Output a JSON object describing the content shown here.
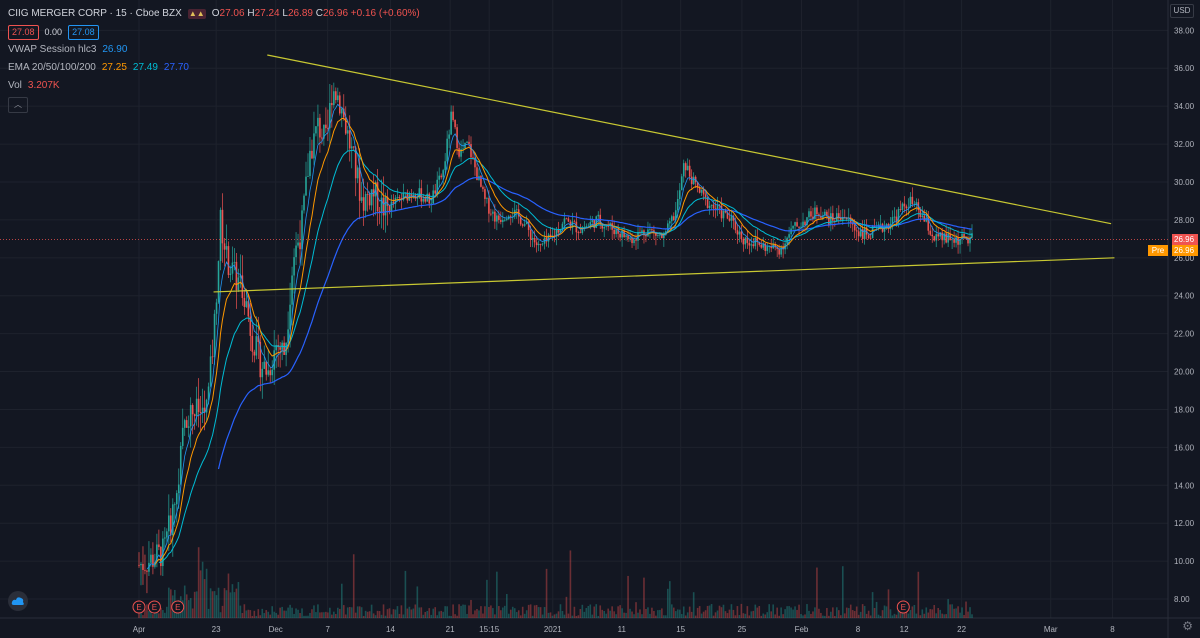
{
  "header": {
    "symbol": "CIIG MERGER CORP · 15 · Cboe BZX",
    "ohlc": [
      {
        "k": "O",
        "v": "27.06"
      },
      {
        "k": "H",
        "v": "27.24"
      },
      {
        "k": "L",
        "v": "26.89"
      },
      {
        "k": "C",
        "v": "26.96 +0.16 (+0.60%)"
      }
    ],
    "bid": "27.08",
    "spread": "0.00",
    "ask": "27.08",
    "vwap_label": "VWAP Session hlc3",
    "vwap_value": "26.90",
    "ema_label": "EMA 20/50/100/200",
    "ema_values": [
      "27.25",
      "27.49",
      "27.70"
    ],
    "vol_label": "Vol",
    "vol_value": "3.207K"
  },
  "currency": "USD",
  "last_price": "26.96",
  "pre_label": "Pre",
  "pre_price": "26.96",
  "colors": {
    "background": "#131722",
    "up": "#26a69a",
    "down": "#ef5350",
    "trendline": "#c8c832",
    "ema20": "#ff9800",
    "ema50": "#00bcd4",
    "ema200": "#2962ff",
    "vwap": "#2196f3"
  },
  "chart_data": {
    "type": "candlestick",
    "y_ticks": [
      8,
      10,
      12,
      14,
      16,
      18,
      20,
      22,
      24,
      26,
      28,
      30,
      32,
      34,
      36,
      38
    ],
    "ylim": [
      7,
      39.6
    ],
    "x_labels": [
      {
        "label": "Apr",
        "x": 0
      },
      {
        "label": "23",
        "x": 0.0926
      },
      {
        "label": "Dec",
        "x": 0.1641
      },
      {
        "label": "7",
        "x": 0.2265
      },
      {
        "label": "14",
        "x": 0.3019
      },
      {
        "label": "21",
        "x": 0.3735
      },
      {
        "label": "15:15",
        "x": 0.4204
      },
      {
        "label": "2021",
        "x": 0.4967
      },
      {
        "label": "11",
        "x": 0.5796
      },
      {
        "label": "15",
        "x": 0.6503
      },
      {
        "label": "25",
        "x": 0.7238
      },
      {
        "label": "Feb",
        "x": 0.7953
      },
      {
        "label": "8",
        "x": 0.8631
      },
      {
        "label": "12",
        "x": 0.9185
      },
      {
        "label": "22",
        "x": 0.9875
      }
    ],
    "x_labels_future": [
      {
        "label": "Mar",
        "x": 1.0945
      },
      {
        "label": "8",
        "x": 1.1686
      }
    ],
    "price_path": [
      [
        0.0,
        9.8
      ],
      [
        0.012,
        10.0
      ],
      [
        0.03,
        10.5
      ],
      [
        0.045,
        13.5
      ],
      [
        0.055,
        17.5
      ],
      [
        0.065,
        18.0
      ],
      [
        0.075,
        17.8
      ],
      [
        0.082,
        18.2
      ],
      [
        0.09,
        22.0
      ],
      [
        0.098,
        28.0
      ],
      [
        0.105,
        26.0
      ],
      [
        0.115,
        25.0
      ],
      [
        0.125,
        24.5
      ],
      [
        0.135,
        22.0
      ],
      [
        0.145,
        20.5
      ],
      [
        0.155,
        20.0
      ],
      [
        0.165,
        21.5
      ],
      [
        0.175,
        21.0
      ],
      [
        0.185,
        26.0
      ],
      [
        0.195,
        27.5
      ],
      [
        0.205,
        31.5
      ],
      [
        0.215,
        33.0
      ],
      [
        0.225,
        32.0
      ],
      [
        0.232,
        35.0
      ],
      [
        0.24,
        34.5
      ],
      [
        0.248,
        33.0
      ],
      [
        0.258,
        31.0
      ],
      [
        0.268,
        29.0
      ],
      [
        0.28,
        29.5
      ],
      [
        0.295,
        28.5
      ],
      [
        0.31,
        29.0
      ],
      [
        0.33,
        29.5
      ],
      [
        0.35,
        29.0
      ],
      [
        0.365,
        30.5
      ],
      [
        0.375,
        33.5
      ],
      [
        0.385,
        31.5
      ],
      [
        0.395,
        32.0
      ],
      [
        0.405,
        30.5
      ],
      [
        0.415,
        29.0
      ],
      [
        0.43,
        28.0
      ],
      [
        0.445,
        28.5
      ],
      [
        0.46,
        28.0
      ],
      [
        0.48,
        26.5
      ],
      [
        0.495,
        27.0
      ],
      [
        0.51,
        28.0
      ],
      [
        0.53,
        27.5
      ],
      [
        0.55,
        28.0
      ],
      [
        0.57,
        27.5
      ],
      [
        0.59,
        27.0
      ],
      [
        0.61,
        27.5
      ],
      [
        0.63,
        27.0
      ],
      [
        0.645,
        28.5
      ],
      [
        0.655,
        31.0
      ],
      [
        0.665,
        30.0
      ],
      [
        0.68,
        29.0
      ],
      [
        0.695,
        28.5
      ],
      [
        0.71,
        28.0
      ],
      [
        0.725,
        27.0
      ],
      [
        0.74,
        26.8
      ],
      [
        0.755,
        26.5
      ],
      [
        0.77,
        26.5
      ],
      [
        0.785,
        27.5
      ],
      [
        0.8,
        28.0
      ],
      [
        0.815,
        28.5
      ],
      [
        0.83,
        28.0
      ],
      [
        0.845,
        28.3
      ],
      [
        0.86,
        27.5
      ],
      [
        0.875,
        27.2
      ],
      [
        0.89,
        27.5
      ],
      [
        0.905,
        28.0
      ],
      [
        0.915,
        28.5
      ],
      [
        0.925,
        29.0
      ],
      [
        0.935,
        28.5
      ],
      [
        0.945,
        27.8
      ],
      [
        0.955,
        27.0
      ],
      [
        0.965,
        27.0
      ],
      [
        0.975,
        26.96
      ]
    ],
    "trendlines": [
      {
        "name": "resistance",
        "from": [
          0.154,
          36.7
        ],
        "to": [
          1.167,
          27.8
        ]
      },
      {
        "name": "support",
        "from": [
          0.0895,
          24.2
        ],
        "to": [
          1.171,
          26.0
        ]
      }
    ],
    "earnings_markers": [
      {
        "label": "E",
        "x": 0.0
      },
      {
        "label": "E",
        "x": 0.0185
      },
      {
        "label": "E",
        "x": 0.0465
      },
      {
        "label": "E",
        "x": 0.9175
      }
    ]
  }
}
